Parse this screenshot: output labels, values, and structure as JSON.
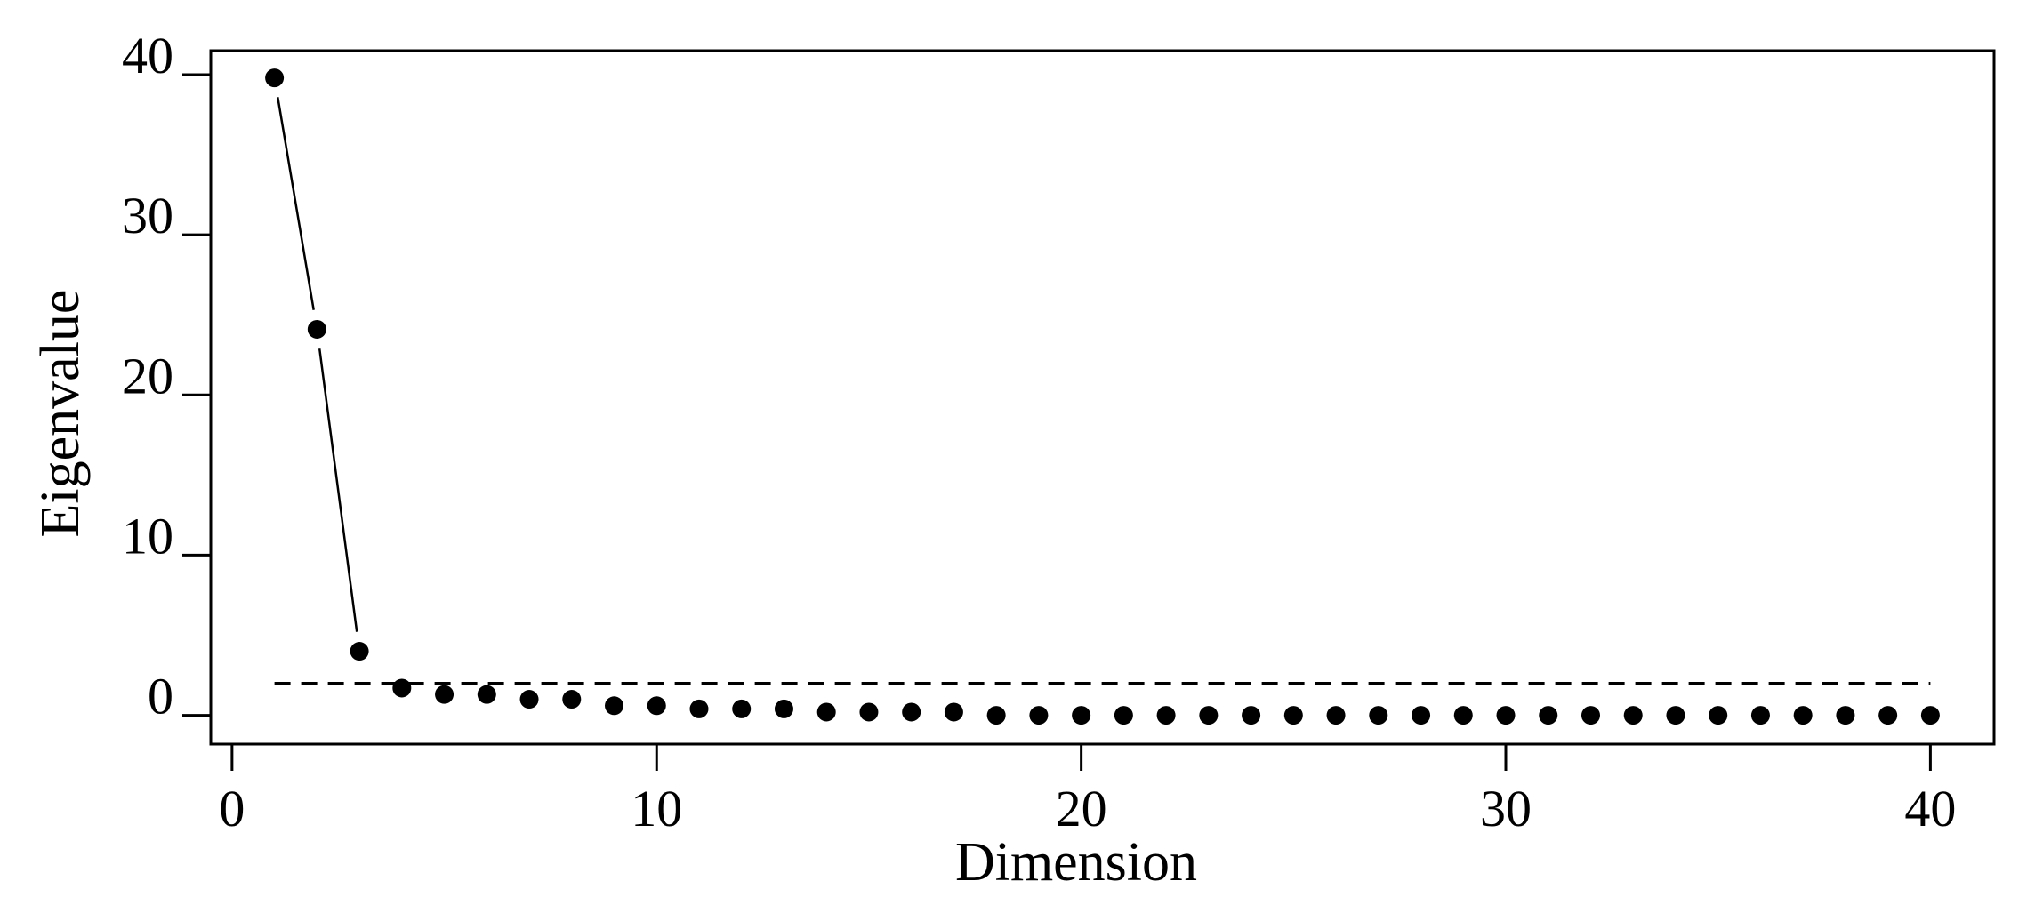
{
  "chart_data": {
    "type": "scatter",
    "xlabel": "Dimension",
    "ylabel": "Eigenvalue",
    "xlim": [
      -0.5,
      41.5
    ],
    "ylim": [
      -1.8,
      41.5
    ],
    "xticks": [
      0,
      10,
      20,
      30,
      40
    ],
    "yticks": [
      0,
      10,
      20,
      30,
      40
    ],
    "grid": false,
    "legend": "none",
    "series": [
      {
        "x": [
          1,
          2,
          3,
          4,
          5,
          6,
          7,
          8,
          9,
          10,
          11,
          12,
          13,
          14,
          15,
          16,
          17,
          18,
          19,
          20,
          21,
          22,
          23,
          24,
          25,
          26,
          27,
          28,
          29,
          30,
          31,
          32,
          33,
          34,
          35,
          36,
          37,
          38,
          39,
          40
        ],
        "values": [
          39.8,
          24.1,
          4.0,
          1.7,
          1.3,
          1.3,
          1.0,
          1.0,
          0.6,
          0.6,
          0.4,
          0.4,
          0.4,
          0.2,
          0.2,
          0.2,
          0.2,
          0.0,
          0.0,
          0.0,
          0.0,
          0.0,
          0.0,
          0.0,
          0.0,
          0.0,
          0.0,
          0.0,
          0.0,
          0.0,
          0.0,
          0.0,
          0.0,
          0.0,
          0.0,
          0.0,
          0.0,
          0.0,
          0.0,
          0.0
        ],
        "connected_points": 3,
        "color": "#000000"
      }
    ],
    "reference_line": {
      "y": 2.0,
      "x_from": 1,
      "x_to": 40,
      "style": "dashed"
    }
  }
}
